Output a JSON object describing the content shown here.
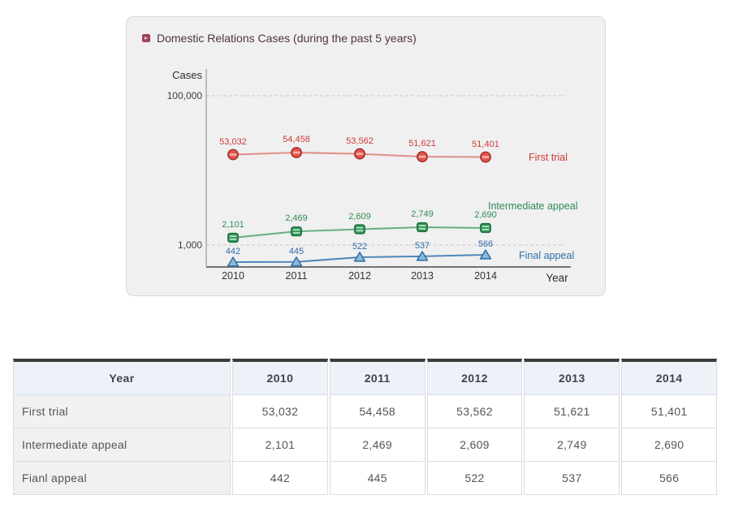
{
  "chart_data": {
    "type": "line",
    "title": "Domestic Relations Cases (during the past 5 years)",
    "xlabel": "Year",
    "ylabel": "Cases",
    "yscale": "log",
    "ylim": [
      300,
      200000
    ],
    "x": [
      "2010",
      "2011",
      "2012",
      "2013",
      "2014"
    ],
    "gridlines": {
      "values": [
        100000,
        1000
      ],
      "labels": [
        "100,000",
        "1,000"
      ],
      "style": "dashed"
    },
    "legend_position": "right-of-series",
    "series": [
      {
        "name": "First trial",
        "marker": "circle",
        "values": [
          53032,
          54458,
          53562,
          51621,
          51401
        ],
        "value_labels": [
          "53,032",
          "54,458",
          "53,562",
          "51,621",
          "51,401"
        ],
        "color": "#cc3b36",
        "line_color": "#de837c",
        "marker_fill": "#e4544c",
        "marker_stroke": "#9c2b27"
      },
      {
        "name": "Intermediate appeal",
        "marker": "barrel",
        "values": [
          2101,
          2469,
          2609,
          2749,
          2690
        ],
        "value_labels": [
          "2,101",
          "2,469",
          "2,609",
          "2,749",
          "2,690"
        ],
        "color": "#2e8b57",
        "line_color": "#55a678",
        "marker_fill": "#2f9b58",
        "marker_stroke": "#1c693a"
      },
      {
        "name": "Final appeal",
        "marker": "triangle",
        "values": [
          442,
          445,
          522,
          537,
          566
        ],
        "value_labels": [
          "442",
          "445",
          "522",
          "537",
          "566"
        ],
        "color": "#2f6ea8",
        "line_color": "#3d7ab2",
        "marker_fill": "#8abada",
        "marker_stroke": "#2e6da4"
      }
    ]
  },
  "table": {
    "columns": [
      "Year",
      "2010",
      "2011",
      "2012",
      "2013",
      "2014"
    ],
    "rows": [
      {
        "label": "First trial",
        "values": [
          "53,032",
          "54,458",
          "53,562",
          "51,621",
          "51,401"
        ]
      },
      {
        "label": "Intermediate appeal",
        "values": [
          "2,101",
          "2,469",
          "2,609",
          "2,749",
          "2,690"
        ]
      },
      {
        "label": "Fianl appeal",
        "values": [
          "442",
          "445",
          "522",
          "537",
          "566"
        ]
      }
    ]
  },
  "colors": {
    "panel_bg": "#f0f0f0",
    "panel_border": "#d8d8d8",
    "title_text": "#4e3440",
    "title_bullet": "#a04358",
    "grid_line": "#c9c9c9",
    "table_header_bg": "#edf2f8",
    "table_header_border_top": "#3c3c3c",
    "table_label_bg": "#f1f1f1",
    "table_text": "#555555"
  }
}
